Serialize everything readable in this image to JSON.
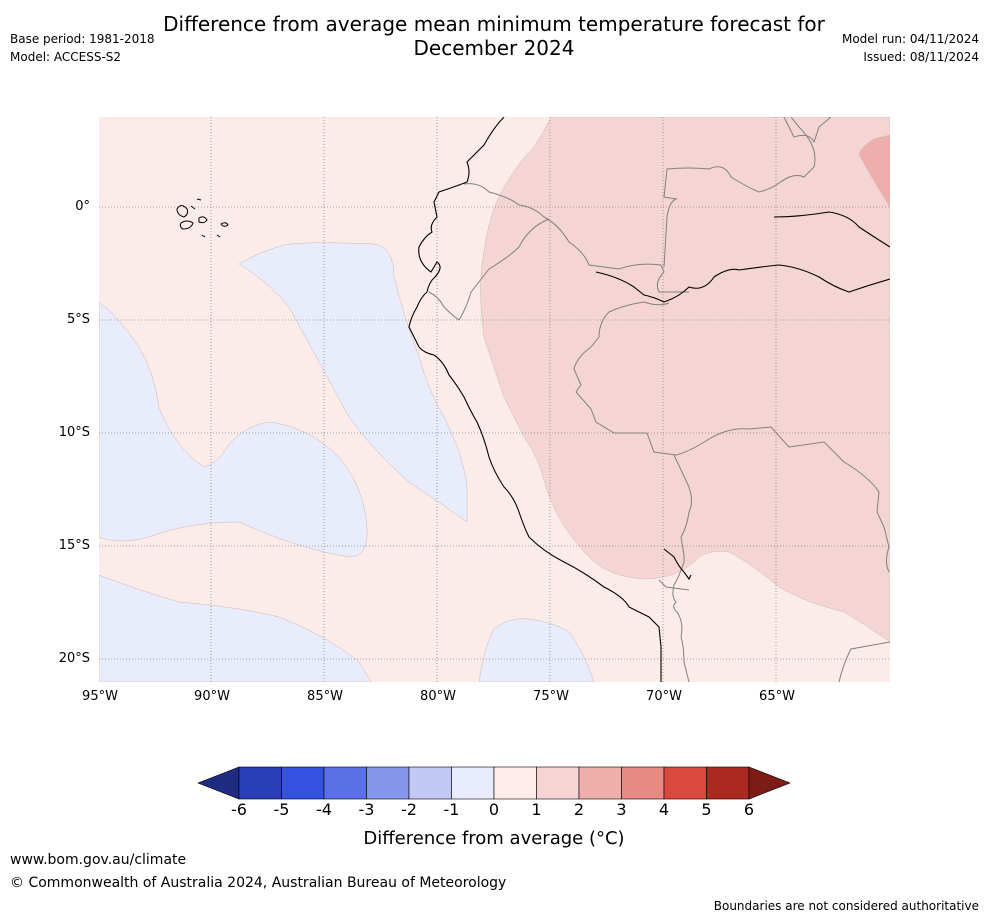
{
  "header": {
    "title_line1": "Difference from average mean minimum temperature forecast for",
    "title_line2": "December 2024",
    "base_period": "Base period: 1981-2018",
    "model": "Model: ACCESS-S2",
    "model_run": "Model run: 04/11/2024",
    "issued": "Issued: 08/11/2024"
  },
  "map": {
    "lat_labels": [
      "0°",
      "5°S",
      "10°S",
      "15°S",
      "20°S"
    ],
    "lon_labels": [
      "95°W",
      "90°W",
      "85°W",
      "80°W",
      "75°W",
      "70°W",
      "65°W"
    ],
    "colors": {
      "ocean_base": "#fbecea",
      "cool_zone": "#e8ecfb",
      "warm_zone": "#f5d5d4",
      "warmer_zone": "#eeaeab",
      "coastline": "#000000",
      "border": "#808080",
      "grid": "#888888"
    }
  },
  "colorbar": {
    "ticks": [
      "-6",
      "-5",
      "-4",
      "-3",
      "-2",
      "-1",
      "0",
      "1",
      "2",
      "3",
      "4",
      "5",
      "6"
    ],
    "colors": [
      "#1d2b80",
      "#2a3eb5",
      "#3551e0",
      "#5b72e6",
      "#8696ea",
      "#c2c9f4",
      "#e7ebfc",
      "#fdecea",
      "#f6d4d3",
      "#eeaeaa",
      "#e88a84",
      "#db483e",
      "#ab2921",
      "#7b1c17"
    ],
    "label": "Difference from average (°C)"
  },
  "footer": {
    "url": "www.bom.gov.au/climate",
    "copyright": "© Commonwealth of Australia 2024, Australian Bureau of Meteorology",
    "disclaimer": "Boundaries are not considered authoritative"
  }
}
